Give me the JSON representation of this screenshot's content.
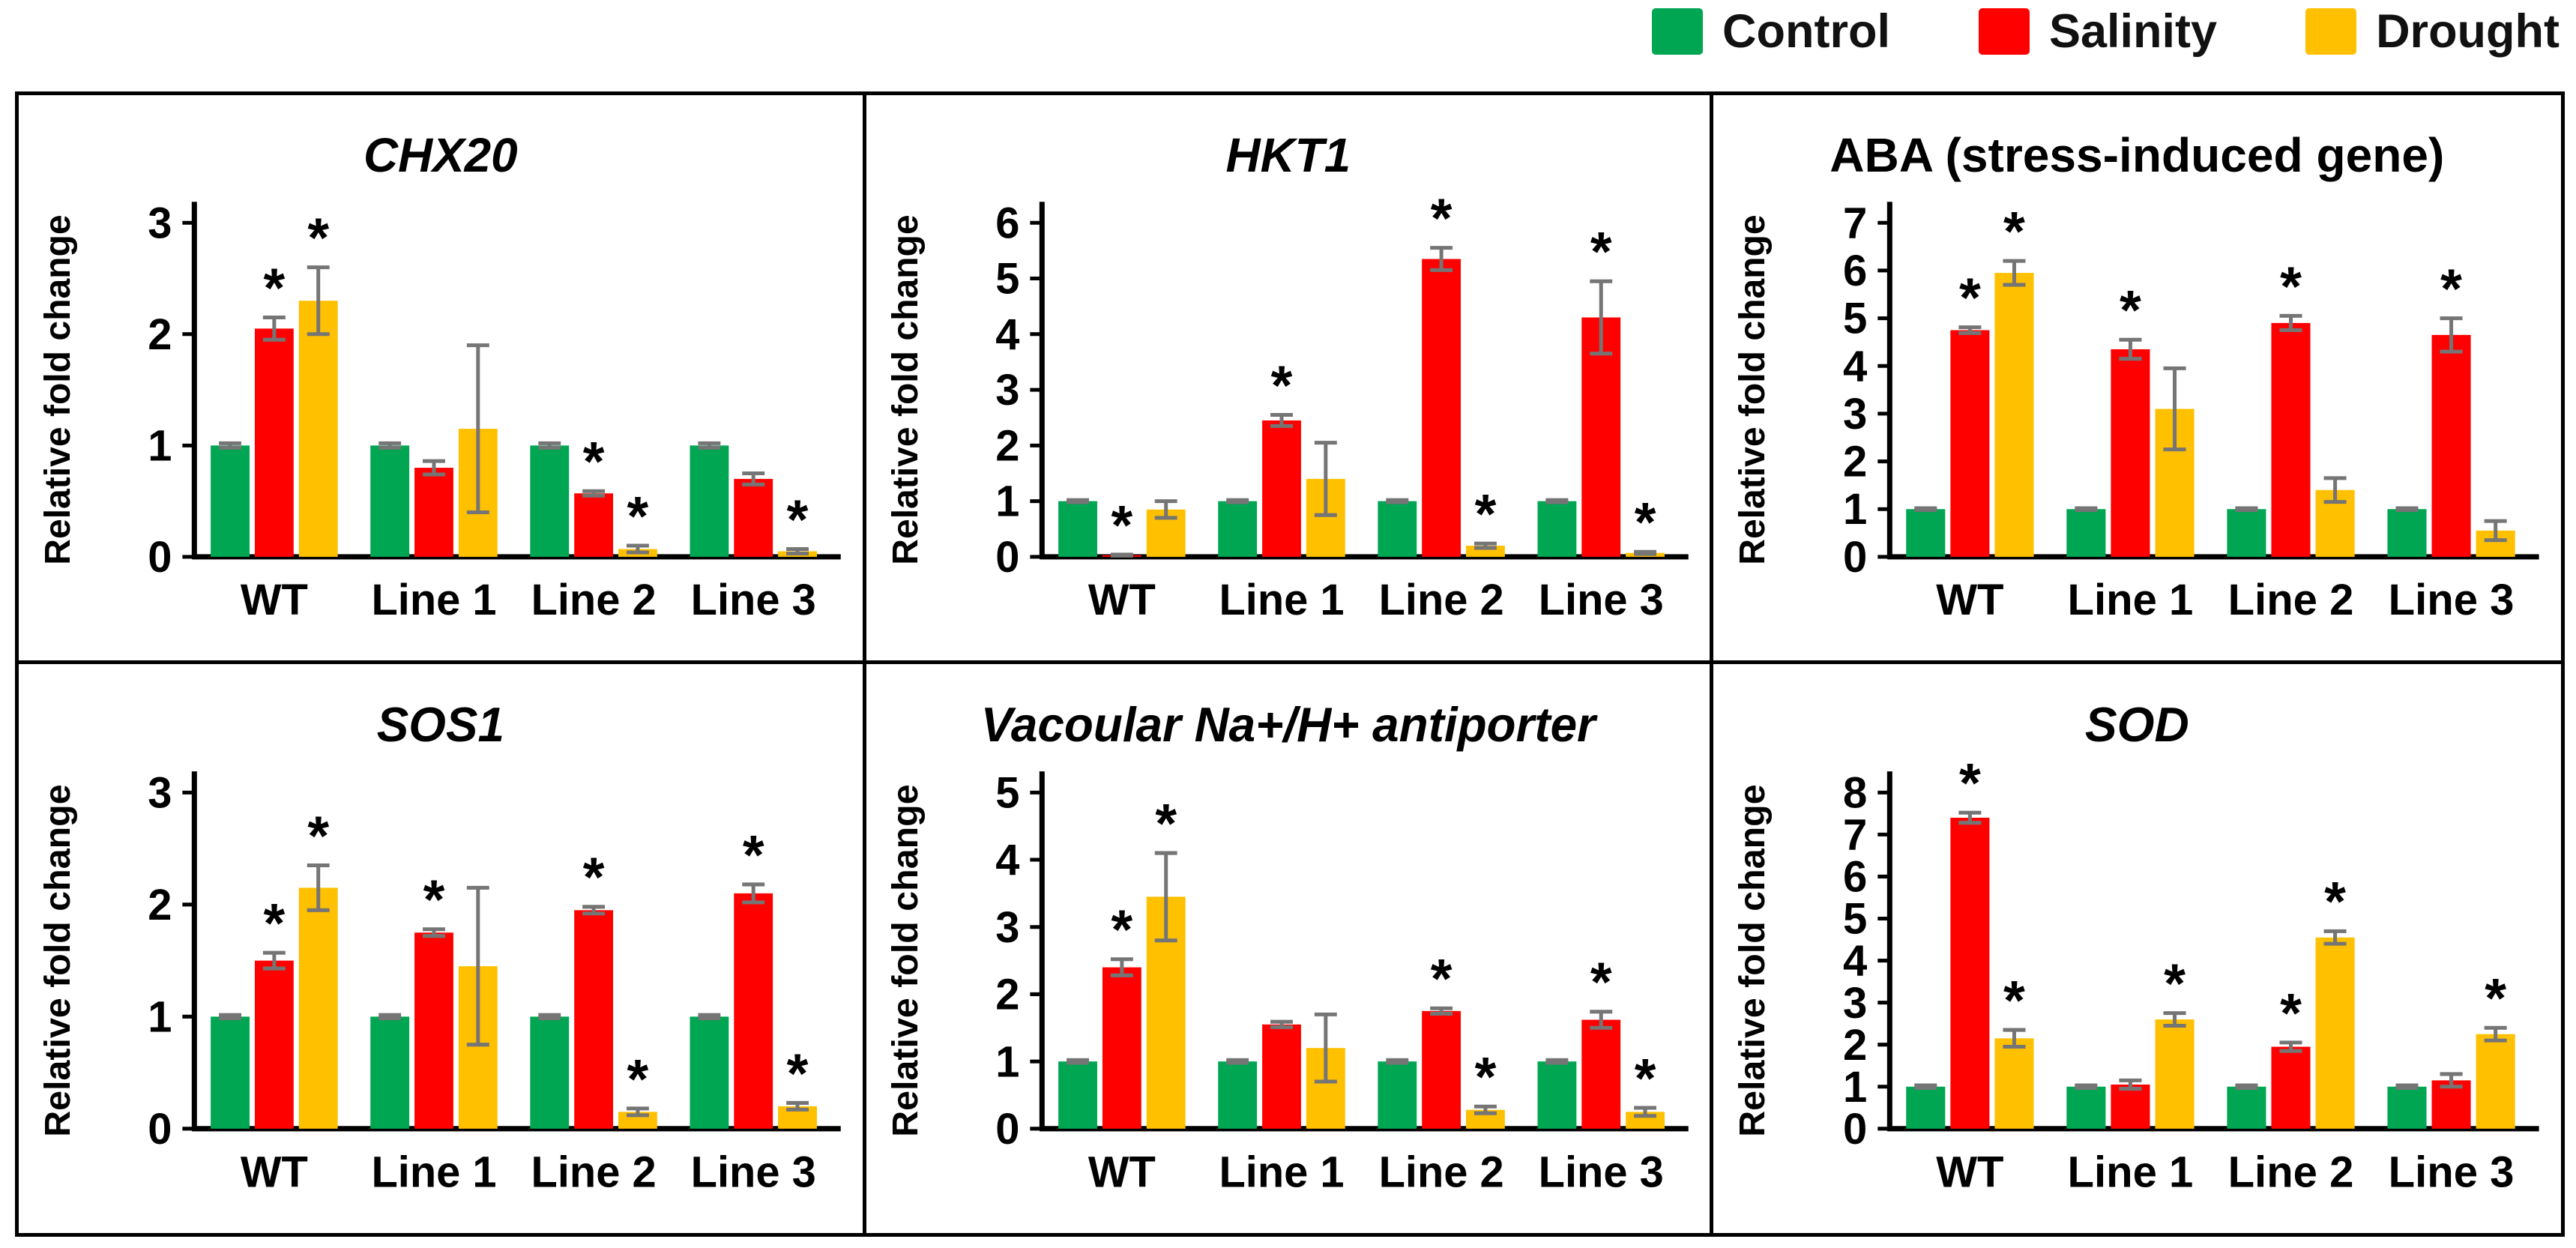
{
  "legend": {
    "items": [
      {
        "label": "Control",
        "color": "#00A651"
      },
      {
        "label": "Salinity",
        "color": "#FF0000"
      },
      {
        "label": "Drought",
        "color": "#FFC000"
      }
    ]
  },
  "axis": {
    "error_bar_color": "#757575",
    "axis_color": "#000000"
  },
  "chart_data": [
    {
      "type": "bar",
      "title": "CHX20",
      "title_italic": true,
      "ylabel": "Relative fold change",
      "ylim": [
        0,
        3
      ],
      "yticks": [
        0,
        1,
        2,
        3
      ],
      "categories": [
        "WT",
        "Line 1",
        "Line 2",
        "Line 3"
      ],
      "series": [
        {
          "name": "Control",
          "values": [
            1,
            1,
            1,
            1
          ],
          "errors": [
            0.02,
            0.02,
            0.02,
            0.02
          ],
          "stars": [
            false,
            false,
            false,
            false
          ]
        },
        {
          "name": "Salinity",
          "values": [
            2.05,
            0.8,
            0.57,
            0.7
          ],
          "errors": [
            0.1,
            0.06,
            0.02,
            0.05
          ],
          "stars": [
            true,
            false,
            true,
            false
          ]
        },
        {
          "name": "Drought",
          "values": [
            2.3,
            1.15,
            0.07,
            0.05
          ],
          "errors": [
            0.3,
            0.75,
            0.03,
            0.02
          ],
          "stars": [
            true,
            false,
            true,
            true
          ]
        }
      ]
    },
    {
      "type": "bar",
      "title": "HKT1",
      "title_italic": true,
      "ylabel": "Relative fold change",
      "ylim": [
        0,
        6
      ],
      "yticks": [
        0,
        1,
        2,
        3,
        4,
        5,
        6
      ],
      "categories": [
        "WT",
        "Line 1",
        "Line 2",
        "Line 3"
      ],
      "series": [
        {
          "name": "Control",
          "values": [
            1,
            1,
            1,
            1
          ],
          "errors": [
            0.02,
            0.02,
            0.02,
            0.02
          ],
          "stars": [
            false,
            false,
            false,
            false
          ]
        },
        {
          "name": "Salinity",
          "values": [
            0.03,
            2.45,
            5.35,
            4.3
          ],
          "errors": [
            0.01,
            0.1,
            0.2,
            0.65
          ],
          "stars": [
            true,
            true,
            true,
            true
          ]
        },
        {
          "name": "Drought",
          "values": [
            0.85,
            1.4,
            0.2,
            0.07
          ],
          "errors": [
            0.15,
            0.65,
            0.04,
            0.02
          ],
          "stars": [
            false,
            false,
            true,
            true
          ]
        }
      ]
    },
    {
      "type": "bar",
      "title": "ABA (stress-induced gene)",
      "title_italic": false,
      "ylabel": "Relative fold change",
      "ylim": [
        0,
        7
      ],
      "yticks": [
        0,
        1,
        2,
        3,
        4,
        5,
        6,
        7
      ],
      "categories": [
        "WT",
        "Line 1",
        "Line 2",
        "Line 3"
      ],
      "series": [
        {
          "name": "Control",
          "values": [
            1,
            1,
            1,
            1
          ],
          "errors": [
            0.02,
            0.02,
            0.02,
            0.02
          ],
          "stars": [
            false,
            false,
            false,
            false
          ]
        },
        {
          "name": "Salinity",
          "values": [
            4.75,
            4.35,
            4.9,
            4.65
          ],
          "errors": [
            0.06,
            0.2,
            0.15,
            0.35
          ],
          "stars": [
            true,
            true,
            true,
            true
          ]
        },
        {
          "name": "Drought",
          "values": [
            5.95,
            3.1,
            1.4,
            0.55
          ],
          "errors": [
            0.25,
            0.85,
            0.25,
            0.2
          ],
          "stars": [
            true,
            false,
            false,
            false
          ]
        }
      ]
    },
    {
      "type": "bar",
      "title": "SOS1",
      "title_italic": true,
      "ylabel": "Relative fold change",
      "ylim": [
        0,
        3
      ],
      "yticks": [
        0,
        1,
        2,
        3
      ],
      "categories": [
        "WT",
        "Line 1",
        "Line 2",
        "Line 3"
      ],
      "series": [
        {
          "name": "Control",
          "values": [
            1,
            1,
            1,
            1
          ],
          "errors": [
            0.015,
            0.015,
            0.015,
            0.015
          ],
          "stars": [
            false,
            false,
            false,
            false
          ]
        },
        {
          "name": "Salinity",
          "values": [
            1.5,
            1.75,
            1.95,
            2.1
          ],
          "errors": [
            0.07,
            0.03,
            0.03,
            0.08
          ],
          "stars": [
            true,
            true,
            true,
            true
          ]
        },
        {
          "name": "Drought",
          "values": [
            2.15,
            1.45,
            0.15,
            0.2
          ],
          "errors": [
            0.2,
            0.7,
            0.03,
            0.03
          ],
          "stars": [
            true,
            false,
            true,
            true
          ]
        }
      ]
    },
    {
      "type": "bar",
      "title": "Vacoular Na+/H+ antiporter",
      "title_italic": true,
      "ylabel": "Relative fold change",
      "ylim": [
        0,
        5
      ],
      "yticks": [
        0,
        1,
        2,
        3,
        4,
        5
      ],
      "categories": [
        "WT",
        "Line 1",
        "Line 2",
        "Line 3"
      ],
      "series": [
        {
          "name": "Control",
          "values": [
            1,
            1,
            1,
            1
          ],
          "errors": [
            0.02,
            0.02,
            0.02,
            0.02
          ],
          "stars": [
            false,
            false,
            false,
            false
          ]
        },
        {
          "name": "Salinity",
          "values": [
            2.4,
            1.55,
            1.75,
            1.62
          ],
          "errors": [
            0.12,
            0.04,
            0.04,
            0.12
          ],
          "stars": [
            true,
            false,
            true,
            true
          ]
        },
        {
          "name": "Drought",
          "values": [
            3.45,
            1.2,
            0.28,
            0.25
          ],
          "errors": [
            0.65,
            0.5,
            0.05,
            0.06
          ],
          "stars": [
            true,
            false,
            true,
            true
          ]
        }
      ]
    },
    {
      "type": "bar",
      "title": "SOD",
      "title_italic": true,
      "ylabel": "Relative fold change",
      "ylim": [
        0,
        8
      ],
      "yticks": [
        0,
        1,
        2,
        3,
        4,
        5,
        6,
        7,
        8
      ],
      "categories": [
        "WT",
        "Line 1",
        "Line 2",
        "Line 3"
      ],
      "series": [
        {
          "name": "Control",
          "values": [
            1,
            1,
            1,
            1
          ],
          "errors": [
            0.03,
            0.03,
            0.03,
            0.03
          ],
          "stars": [
            false,
            false,
            false,
            false
          ]
        },
        {
          "name": "Salinity",
          "values": [
            7.4,
            1.05,
            1.95,
            1.15
          ],
          "errors": [
            0.12,
            0.1,
            0.1,
            0.15
          ],
          "stars": [
            true,
            false,
            true,
            false
          ]
        },
        {
          "name": "Drought",
          "values": [
            2.15,
            2.6,
            4.55,
            2.25
          ],
          "errors": [
            0.2,
            0.15,
            0.15,
            0.15
          ],
          "stars": [
            true,
            true,
            true,
            true
          ]
        }
      ]
    }
  ]
}
